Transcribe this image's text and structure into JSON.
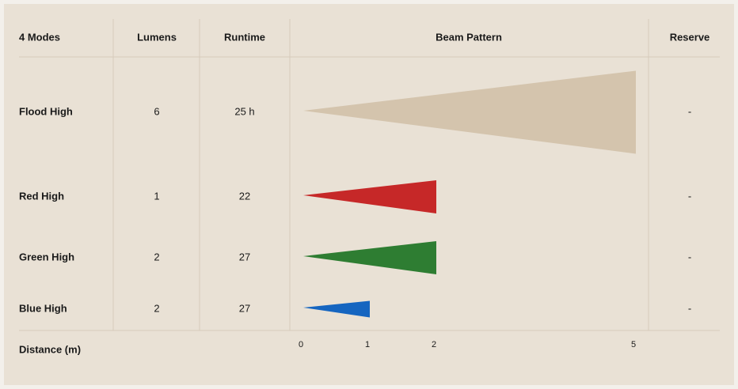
{
  "table": {
    "headers": [
      "4 Modes",
      "Lumens",
      "Runtime",
      "Beam Pattern",
      "Reserve"
    ],
    "rows": [
      {
        "mode": "Flood High",
        "lumens": 6,
        "runtime": "25 h",
        "beam": 5,
        "color": "#d4c4ad",
        "reserve": "-"
      },
      {
        "mode": "Red High",
        "lumens": 1,
        "runtime": "22",
        "beam": 2,
        "color": "#c62828",
        "reserve": "-"
      },
      {
        "mode": "Green High",
        "lumens": 2,
        "runtime": "27",
        "beam": 2,
        "color": "#2e7d32",
        "reserve": "-"
      },
      {
        "mode": "Blue High",
        "lumens": 2,
        "runtime": "27",
        "beam": 1,
        "color": "#1565c0",
        "reserve": "-"
      }
    ],
    "axis": {
      "label": "Distance (m)",
      "ticks": [
        0,
        1,
        2,
        5
      ]
    }
  }
}
